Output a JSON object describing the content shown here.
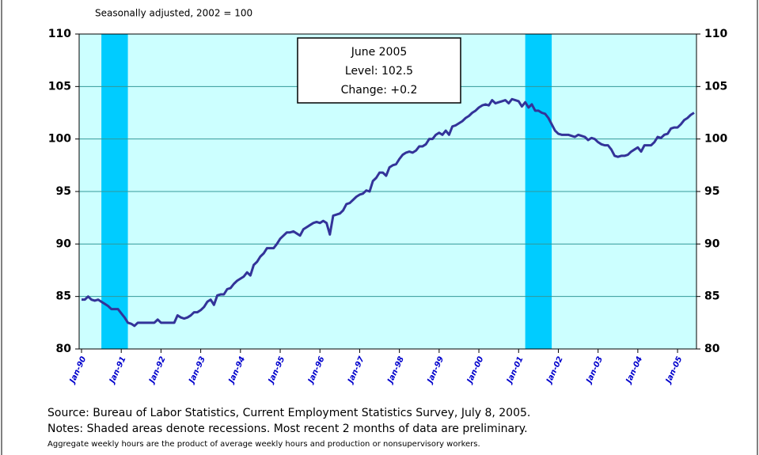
{
  "chart_data": {
    "type": "line",
    "subtitle": "Seasonally adjusted,  2002 = 100",
    "annotation": [
      "June 2005",
      "Level: 102.5",
      "Change: +0.2"
    ],
    "notes": [
      "Source:  Bureau of Labor Statistics, Current Employment Statistics Survey, July 8, 2005.",
      "Notes:  Shaded areas denote recessions.  Most recent 2 months of data are preliminary.",
      "Aggregate weekly hours are the product of average weekly hours and production or nonsupervisory workers."
    ],
    "categories": [
      "Jan-90",
      null,
      null,
      null,
      null,
      null,
      null,
      null,
      null,
      null,
      null,
      null,
      "Jan-91",
      null,
      null,
      null,
      null,
      null,
      null,
      null,
      null,
      null,
      null,
      null,
      "Jan-92",
      null,
      null,
      null,
      null,
      null,
      null,
      null,
      null,
      null,
      null,
      null,
      "Jan-93",
      null,
      null,
      null,
      null,
      null,
      null,
      null,
      null,
      null,
      null,
      null,
      "Jan-94",
      null,
      null,
      null,
      null,
      null,
      null,
      null,
      null,
      null,
      null,
      null,
      "Jan-95",
      null,
      null,
      null,
      null,
      null,
      null,
      null,
      null,
      null,
      null,
      null,
      "Jan-96",
      null,
      null,
      null,
      null,
      null,
      null,
      null,
      null,
      null,
      null,
      null,
      "Jan-97",
      null,
      null,
      null,
      null,
      null,
      null,
      null,
      null,
      null,
      null,
      null,
      "Jan-98",
      null,
      null,
      null,
      null,
      null,
      null,
      null,
      null,
      null,
      null,
      null,
      "Jan-99",
      null,
      null,
      null,
      null,
      null,
      null,
      null,
      null,
      null,
      null,
      null,
      "Jan-00",
      null,
      null,
      null,
      null,
      null,
      null,
      null,
      null,
      null,
      null,
      null,
      "Jan-01",
      null,
      null,
      null,
      null,
      null,
      null,
      null,
      null,
      null,
      null,
      null,
      "Jan-02",
      null,
      null,
      null,
      null,
      null,
      null,
      null,
      null,
      null,
      null,
      null,
      "Jan-03",
      null,
      null,
      null,
      null,
      null,
      null,
      null,
      null,
      null,
      null,
      null,
      "Jan-04",
      null,
      null,
      null,
      null,
      null,
      null,
      null,
      null,
      null,
      null,
      null,
      "Jan-05",
      null,
      null,
      null,
      null,
      null
    ],
    "values": [
      84.7,
      84.7,
      85.0,
      84.7,
      84.6,
      84.7,
      84.5,
      84.3,
      84.1,
      83.8,
      83.8,
      83.8,
      83.4,
      83.0,
      82.5,
      82.4,
      82.2,
      82.5,
      82.5,
      82.5,
      82.5,
      82.5,
      82.5,
      82.8,
      82.5,
      82.5,
      82.5,
      82.5,
      82.5,
      83.2,
      83.0,
      82.9,
      83.0,
      83.2,
      83.5,
      83.5,
      83.7,
      84.0,
      84.5,
      84.7,
      84.2,
      85.1,
      85.2,
      85.2,
      85.7,
      85.8,
      86.2,
      86.5,
      86.7,
      86.9,
      87.3,
      87.0,
      88.0,
      88.3,
      88.8,
      89.1,
      89.6,
      89.6,
      89.6,
      90.0,
      90.5,
      90.8,
      91.1,
      91.1,
      91.2,
      91.0,
      90.8,
      91.4,
      91.6,
      91.8,
      92.0,
      92.1,
      92.0,
      92.2,
      92.0,
      90.9,
      92.7,
      92.8,
      92.9,
      93.2,
      93.8,
      93.9,
      94.2,
      94.5,
      94.7,
      94.8,
      95.1,
      95.0,
      96.0,
      96.3,
      96.8,
      96.8,
      96.5,
      97.3,
      97.5,
      97.6,
      98.1,
      98.5,
      98.7,
      98.8,
      98.7,
      98.9,
      99.3,
      99.3,
      99.5,
      100.0,
      100.0,
      100.4,
      100.6,
      100.4,
      100.8,
      100.4,
      101.2,
      101.3,
      101.5,
      101.7,
      102.0,
      102.2,
      102.5,
      102.7,
      103.0,
      103.2,
      103.3,
      103.2,
      103.7,
      103.4,
      103.5,
      103.6,
      103.7,
      103.4,
      103.8,
      103.7,
      103.6,
      103.1,
      103.5,
      103.0,
      103.3,
      102.7,
      102.7,
      102.5,
      102.4,
      102.0,
      101.4,
      100.8,
      100.5,
      100.4,
      100.4,
      100.4,
      100.3,
      100.2,
      100.4,
      100.3,
      100.2,
      99.9,
      100.1,
      100.0,
      99.7,
      99.5,
      99.4,
      99.4,
      99.0,
      98.4,
      98.3,
      98.4,
      98.4,
      98.5,
      98.8,
      99.0,
      99.2,
      98.8,
      99.4,
      99.4,
      99.4,
      99.7,
      100.2,
      100.1,
      100.4,
      100.5,
      101.0,
      101.1,
      101.1,
      101.4,
      101.8,
      102.0,
      102.3,
      102.5
    ],
    "color": "#333399",
    "shaded_areas": [
      {
        "start": 6,
        "end": 14
      },
      {
        "start": 134,
        "end": 142
      }
    ],
    "shade_color": "#00ccff",
    "ylim": [
      80,
      110
    ],
    "yticks": [
      80,
      85,
      90,
      95,
      100,
      105,
      110
    ],
    "grid": true
  }
}
